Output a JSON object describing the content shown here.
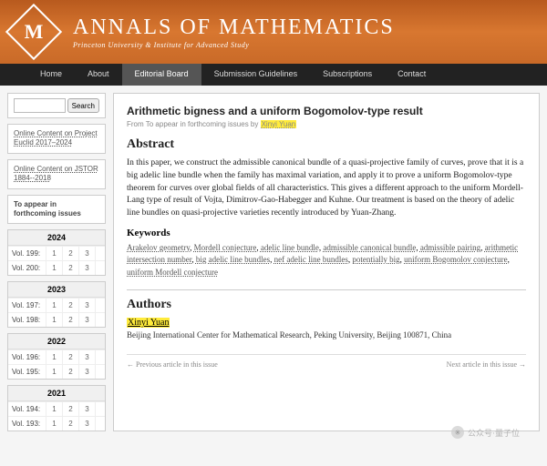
{
  "header": {
    "logo_letter": "M",
    "title": "ANNALS OF MATHEMATICS",
    "subtitle": "Princeton University & Institute for Advanced Study"
  },
  "nav": {
    "items": [
      "Home",
      "About",
      "Editorial Board",
      "Submission Guidelines",
      "Subscriptions",
      "Contact"
    ],
    "active_index": 2
  },
  "sidebar": {
    "search_btn": "Search",
    "panels": [
      "Online Content on Project Euclid 2017–2024",
      "Online Content on JSTOR 1884--2018",
      "To appear in forthcoming issues"
    ],
    "years": [
      {
        "year": "2024",
        "vols": [
          {
            "label": "Vol. 199:",
            "nums": [
              "1",
              "2",
              "3"
            ]
          },
          {
            "label": "Vol. 200:",
            "nums": [
              "1",
              "2",
              "3"
            ]
          }
        ]
      },
      {
        "year": "2023",
        "vols": [
          {
            "label": "Vol. 197:",
            "nums": [
              "1",
              "2",
              "3"
            ]
          },
          {
            "label": "Vol. 198:",
            "nums": [
              "1",
              "2",
              "3"
            ]
          }
        ]
      },
      {
        "year": "2022",
        "vols": [
          {
            "label": "Vol. 196:",
            "nums": [
              "1",
              "2",
              "3"
            ]
          },
          {
            "label": "Vol. 195:",
            "nums": [
              "1",
              "2",
              "3"
            ]
          }
        ]
      },
      {
        "year": "2021",
        "vols": [
          {
            "label": "Vol. 194:",
            "nums": [
              "1",
              "2",
              "3"
            ]
          },
          {
            "label": "Vol. 193:",
            "nums": [
              "1",
              "2",
              "3"
            ]
          }
        ]
      }
    ]
  },
  "article": {
    "title": "Arithmetic bigness and a uniform Bogomolov-type result",
    "meta_prefix": "From To appear in forthcoming issues by ",
    "meta_author": "Xinyi Yuan",
    "abstract_h": "Abstract",
    "abstract": "In this paper, we construct the admissible canonical bundle of a quasi-projective family of curves, prove that it is a big adelic line bundle when the family has maximal variation, and apply it to prove a uniform Bogomolov-type theorem for curves over global fields of all characteristics. This gives a different approach to the uniform Mordell-Lang type of result of Vojta, Dimitrov-Gao-Habegger and Kuhne. Our treatment is based on the theory of adelic line bundles on quasi-projective varieties recently introduced by Yuan-Zhang.",
    "keywords_h": "Keywords",
    "keywords": [
      "Arakelov geometry",
      "Mordell conjecture",
      "adelic line bundle",
      "admissible canonical bundle",
      "admissible pairing",
      "arithmetic intersection number",
      "big adelic line bundles",
      "nef adelic line bundles",
      "potentially big",
      "uniform Bogomolov conjecture",
      "uniform Mordell conjecture"
    ],
    "authors_h": "Authors",
    "author_name": "Xinyi Yuan",
    "affiliation": "Beijing International Center for Mathematical Research, Peking University, Beijing 100871, China",
    "prev": "← Previous article in this issue",
    "next": "Next article in this issue →"
  },
  "watermark": {
    "text": "公众号·量子位"
  },
  "colors": {
    "banner_gradient_top": "#b85a1e",
    "banner_gradient_mid": "#d87730",
    "banner_gradient_bot": "#c96a28",
    "navbar_bg": "#222222",
    "navbar_active_bg": "#555555",
    "body_bg": "#f5f5f5",
    "panel_border": "#cccccc",
    "highlight": "#ffeb3b",
    "link_color": "#555555"
  }
}
